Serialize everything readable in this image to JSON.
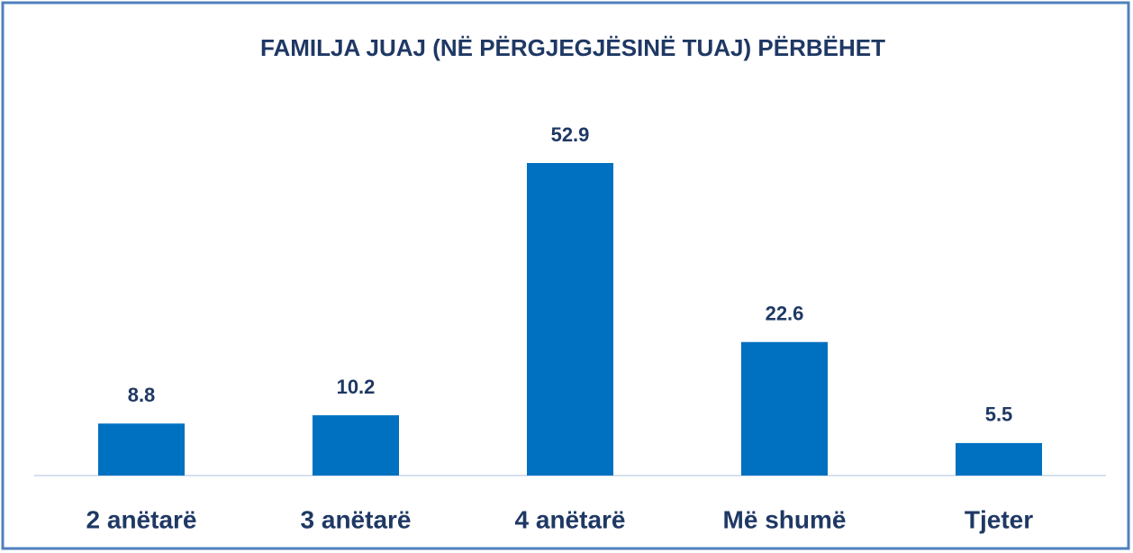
{
  "chart_data": {
    "type": "bar",
    "title": "FAMILJA JUAJ (NË PËRGJEGJËSINË TUAJ) PËRBËHET",
    "categories": [
      "2 anëtarë",
      "3 anëtarë",
      "4 anëtarë",
      "Më shumë",
      "Tjeter"
    ],
    "values": [
      8.8,
      10.2,
      52.9,
      22.6,
      5.5
    ],
    "color": "#0070c0"
  }
}
